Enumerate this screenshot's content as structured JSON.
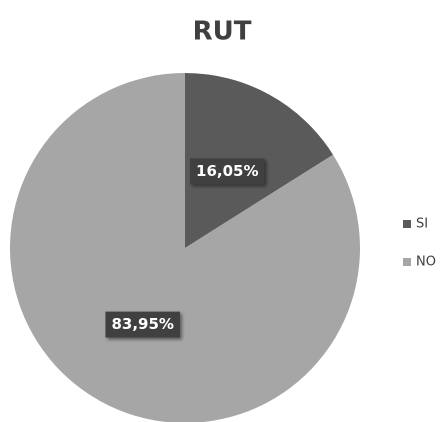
{
  "chart_data": {
    "type": "pie",
    "title": "RUT",
    "categories": [
      "SI",
      "NO"
    ],
    "values": [
      16.05,
      83.95
    ],
    "value_labels": [
      "16,05%",
      "83,95%"
    ],
    "colors": [
      "#5a5a5a",
      "#a6a6a6"
    ],
    "legend": "right"
  }
}
